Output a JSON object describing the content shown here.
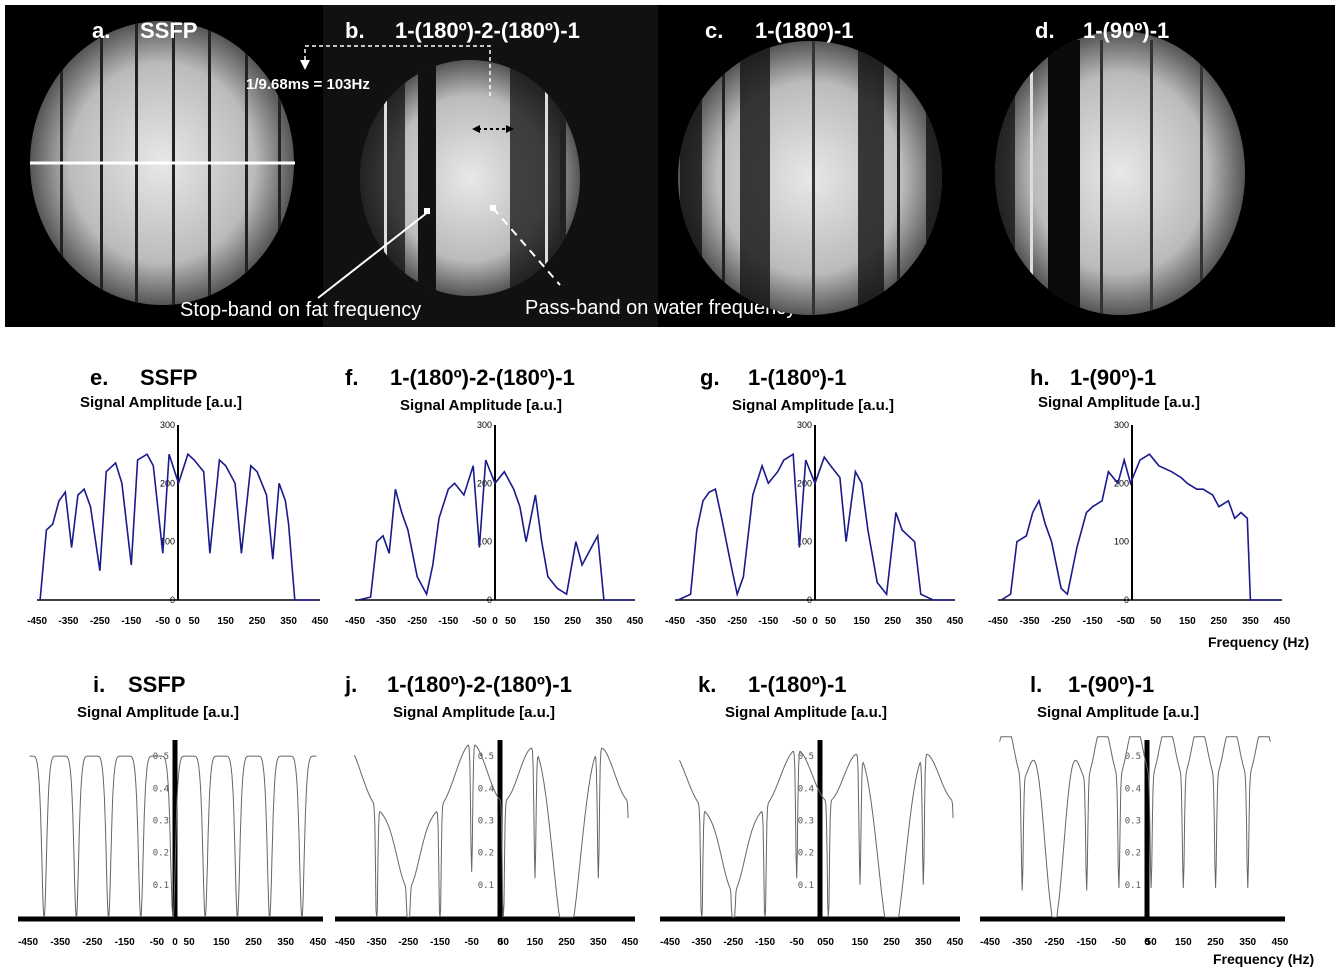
{
  "mri": {
    "panels": [
      {
        "label": "a.",
        "title": "SSFP"
      },
      {
        "label": "b.",
        "title": "1-(180º)-2-(180º)-1"
      },
      {
        "label": "c.",
        "title": "1-(180º)-1"
      },
      {
        "label": "d.",
        "title": "1-(90º)-1"
      }
    ],
    "period_label": "1/9.68ms = 103Hz",
    "stop_band_label": "Stop-band on fat frequency",
    "pass_band_label": "Pass-band on water frequency"
  },
  "measured": {
    "panels": [
      {
        "label": "e.",
        "title": "SSFP",
        "ylabel": "Signal Amplitude [a.u.]"
      },
      {
        "label": "f.",
        "title": "1-(180º)-2-(180º)-1",
        "ylabel": "Signal Amplitude [a.u.]"
      },
      {
        "label": "g.",
        "title": "1-(180º)-1",
        "ylabel": "Signal Amplitude [a.u.]"
      },
      {
        "label": "h.",
        "title": "1-(90º)-1",
        "ylabel": "Signal Amplitude [a.u.]"
      }
    ],
    "y_ticks": [
      "0",
      "100",
      "200",
      "300"
    ],
    "x_ticks": [
      "-450",
      "-350",
      "-250",
      "-150",
      "-50",
      "0",
      "50",
      "150",
      "250",
      "350",
      "450"
    ],
    "xlabel": "Frequency (Hz)"
  },
  "simulated": {
    "panels": [
      {
        "label": "i.",
        "title": "SSFP",
        "ylabel": "Signal Amplitude [a.u.]"
      },
      {
        "label": "j.",
        "title": "1-(180º)-2-(180º)-1",
        "ylabel": "Signal Amplitude [a.u.]"
      },
      {
        "label": "k.",
        "title": "1-(180º)-1",
        "ylabel": "Signal Amplitude [a.u.]"
      },
      {
        "label": "l.",
        "title": "1-(90º)-1",
        "ylabel": "Signal Amplitude [a.u.]"
      }
    ],
    "y_ticks": [
      "0.1",
      "0.2",
      "0.3",
      "0.4",
      "0.5"
    ],
    "x_ticks": [
      "-450",
      "-350",
      "-250",
      "-150",
      "-50",
      "0",
      "50",
      "150",
      "250",
      "350",
      "450"
    ],
    "xlabel": "Frequency (Hz)"
  },
  "colors": {
    "measured_line": "#1a1a8c",
    "simulated_line": "#666666",
    "image_bg": "#000000"
  },
  "chart_data": [
    {
      "type": "line",
      "title": "SSFP",
      "ylabel": "Signal Amplitude [a.u.]",
      "xlabel": "Frequency (Hz)",
      "xlim": [
        -450,
        450
      ],
      "ylim": [
        0,
        300
      ],
      "x": [
        -440,
        -420,
        -400,
        -380,
        -360,
        -340,
        -320,
        -300,
        -280,
        -250,
        -230,
        -200,
        -180,
        -150,
        -130,
        -100,
        -80,
        -50,
        -30,
        0,
        30,
        50,
        80,
        100,
        130,
        150,
        180,
        200,
        230,
        250,
        280,
        300,
        320,
        340,
        350,
        370,
        400,
        440
      ],
      "values": [
        0,
        120,
        130,
        170,
        185,
        90,
        180,
        190,
        160,
        50,
        220,
        235,
        200,
        60,
        240,
        250,
        230,
        80,
        250,
        200,
        250,
        240,
        220,
        80,
        240,
        230,
        200,
        80,
        230,
        220,
        180,
        70,
        200,
        170,
        130,
        0,
        0,
        0
      ],
      "dips": [
        -350,
        -250,
        -150,
        -50,
        50,
        150,
        250,
        350
      ]
    },
    {
      "type": "line",
      "title": "1-(180º)-2-(180º)-1",
      "ylabel": "Signal Amplitude [a.u.]",
      "xlabel": "Frequency (Hz)",
      "xlim": [
        -450,
        450
      ],
      "ylim": [
        0,
        300
      ],
      "x": [
        -440,
        -400,
        -380,
        -360,
        -340,
        -320,
        -300,
        -280,
        -250,
        -220,
        -200,
        -180,
        -150,
        -130,
        -100,
        -70,
        -50,
        -30,
        0,
        30,
        60,
        80,
        100,
        130,
        150,
        170,
        200,
        230,
        260,
        280,
        300,
        330,
        350,
        400,
        440
      ],
      "values": [
        0,
        5,
        100,
        110,
        80,
        190,
        150,
        120,
        40,
        10,
        60,
        140,
        190,
        200,
        180,
        230,
        90,
        240,
        200,
        220,
        190,
        160,
        100,
        180,
        100,
        40,
        20,
        10,
        100,
        60,
        80,
        110,
        0,
        0,
        0
      ]
    },
    {
      "type": "line",
      "title": "1-(180º)-1",
      "ylabel": "Signal Amplitude [a.u.]",
      "xlabel": "Frequency (Hz)",
      "xlim": [
        -450,
        450
      ],
      "ylim": [
        0,
        300
      ],
      "x": [
        -440,
        -400,
        -380,
        -360,
        -340,
        -320,
        -300,
        -270,
        -250,
        -230,
        -200,
        -170,
        -150,
        -120,
        -100,
        -70,
        -50,
        -30,
        0,
        30,
        50,
        80,
        100,
        130,
        150,
        170,
        200,
        230,
        260,
        280,
        300,
        320,
        340,
        380,
        440
      ],
      "values": [
        0,
        10,
        120,
        170,
        185,
        190,
        140,
        60,
        10,
        40,
        180,
        230,
        200,
        220,
        240,
        250,
        90,
        240,
        200,
        245,
        230,
        210,
        100,
        220,
        200,
        120,
        30,
        10,
        150,
        120,
        110,
        100,
        10,
        0,
        0
      ]
    },
    {
      "type": "line",
      "title": "1-(90º)-1",
      "ylabel": "Signal Amplitude [a.u.]",
      "xlabel": "Frequency (Hz)",
      "xlim": [
        -450,
        450
      ],
      "ylim": [
        0,
        300
      ],
      "x": [
        -440,
        -410,
        -390,
        -360,
        -340,
        -320,
        -300,
        -280,
        -250,
        -230,
        -200,
        -170,
        -150,
        -120,
        -100,
        -70,
        -50,
        -30,
        0,
        30,
        60,
        100,
        130,
        150,
        180,
        200,
        230,
        250,
        280,
        300,
        320,
        340,
        350,
        400,
        440
      ],
      "values": [
        0,
        10,
        100,
        110,
        150,
        170,
        130,
        100,
        20,
        10,
        90,
        150,
        160,
        170,
        220,
        200,
        240,
        200,
        240,
        250,
        230,
        220,
        210,
        200,
        190,
        190,
        180,
        160,
        170,
        140,
        150,
        140,
        0,
        0,
        0
      ]
    },
    {
      "type": "line",
      "title": "SSFP",
      "ylabel": "Signal Amplitude [a.u.]",
      "xlabel": "Frequency (Hz)",
      "xlim": [
        -450,
        450
      ],
      "ylim": [
        0,
        0.55
      ],
      "model": "ssfp",
      "params": {
        "baseline": 0.5,
        "dip_depth": 0.5,
        "dips": [
          -400,
          -300,
          -200,
          -100,
          0,
          100,
          200,
          300,
          400
        ]
      }
    },
    {
      "type": "line",
      "title": "1-(180º)-2-(180º)-1",
      "ylabel": "Signal Amplitude [a.u.]",
      "xlabel": "Frequency (Hz)",
      "xlim": [
        -450,
        450
      ],
      "ylim": [
        0,
        0.55
      ],
      "model": "double-dip",
      "params": {
        "top": 0.54,
        "mid": 0.45,
        "low": 0.12,
        "zeros": [
          -250,
          250
        ]
      }
    },
    {
      "type": "line",
      "title": "1-(180º)-1",
      "ylabel": "Signal Amplitude [a.u.]",
      "xlabel": "Frequency (Hz)",
      "xlim": [
        -450,
        450
      ],
      "ylim": [
        0,
        0.55
      ],
      "model": "double-dip",
      "params": {
        "top": 0.52,
        "mid": 0.44,
        "low": 0.05,
        "zeros": [
          -250,
          250
        ]
      }
    },
    {
      "type": "line",
      "title": "1-(90º)-1",
      "ylabel": "Signal Amplitude [a.u.]",
      "xlabel": "Frequency (Hz)",
      "xlim": [
        -450,
        450
      ],
      "ylim": [
        0,
        0.55
      ],
      "model": "asym",
      "params": {
        "top": 0.52,
        "low": 0.05,
        "zeros": [
          -250
        ]
      }
    }
  ]
}
